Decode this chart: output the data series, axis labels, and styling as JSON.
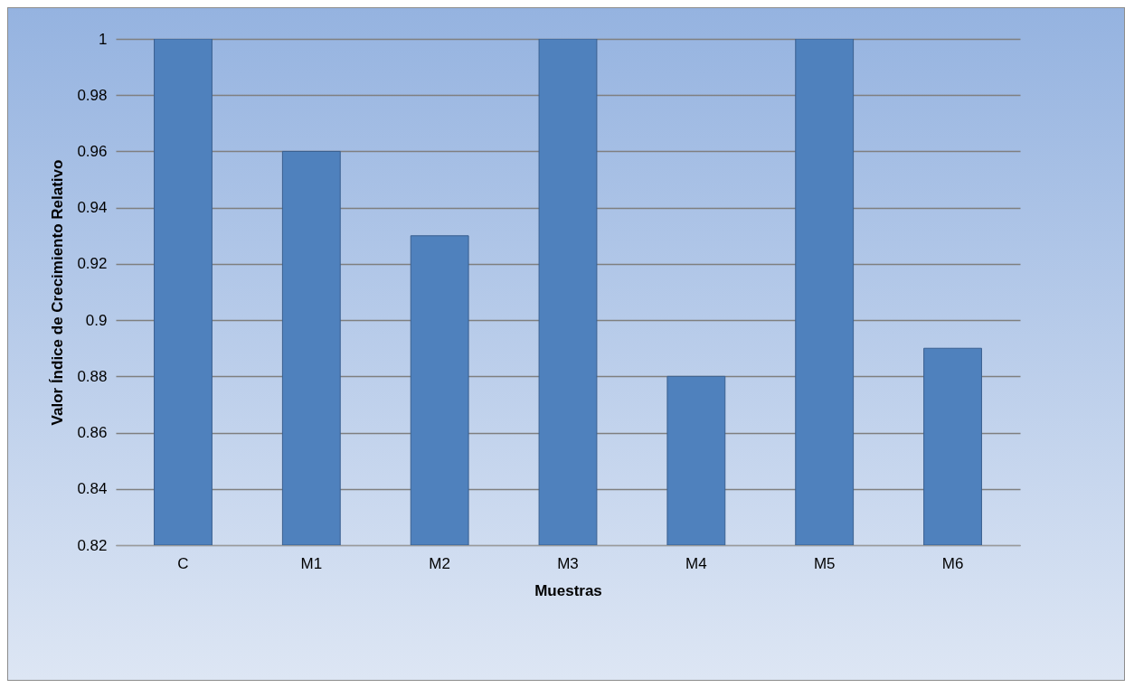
{
  "chart_data": {
    "type": "bar",
    "xlabel": "Muestras",
    "ylabel": "Valor Índice de Crecimiento Relativo",
    "categories": [
      "C",
      "M1",
      "M2",
      "M3",
      "M4",
      "M5",
      "M6"
    ],
    "values": [
      1,
      0.96,
      0.93,
      1,
      0.88,
      1,
      0.89
    ],
    "color": "#4f81bd",
    "ylim": [
      0.82,
      1.0
    ],
    "yticks": [
      0.82,
      0.84,
      0.86,
      0.88,
      0.9,
      0.92,
      0.94,
      0.96,
      0.98,
      1
    ],
    "grid": "y"
  }
}
